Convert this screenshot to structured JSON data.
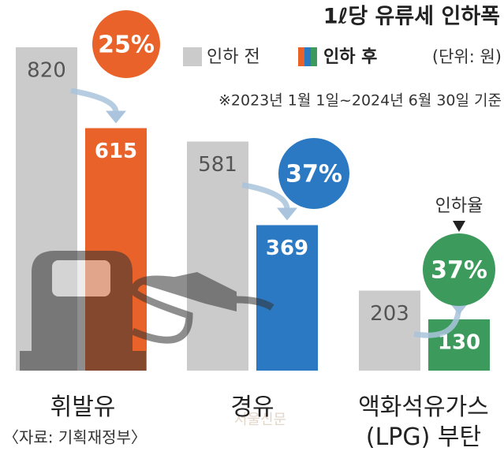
{
  "chart_data": {
    "type": "bar",
    "title": "1ℓ당 유류세 인하폭",
    "unit": "(단위: 원)",
    "note": "※2023년 1월 1일~2024년 6월 30일 기준",
    "categories": [
      "휘발유",
      "경유",
      "액화석유가스\n(LPG) 부탄"
    ],
    "series": [
      {
        "name": "인하 전",
        "color": "#cbcbcb",
        "values": [
          820,
          581,
          203
        ]
      },
      {
        "name": "인하 후",
        "colors": [
          "#e8622a",
          "#2b79c2",
          "#3c9a5c"
        ],
        "values": [
          615,
          369,
          130
        ]
      }
    ],
    "rates": [
      25,
      37,
      37
    ],
    "rate_labels": [
      "25%",
      "37%",
      "37%"
    ],
    "rate_annotation": "인하율",
    "source": "〈자료: 기획재정부〉",
    "watermark": "서울신문"
  }
}
